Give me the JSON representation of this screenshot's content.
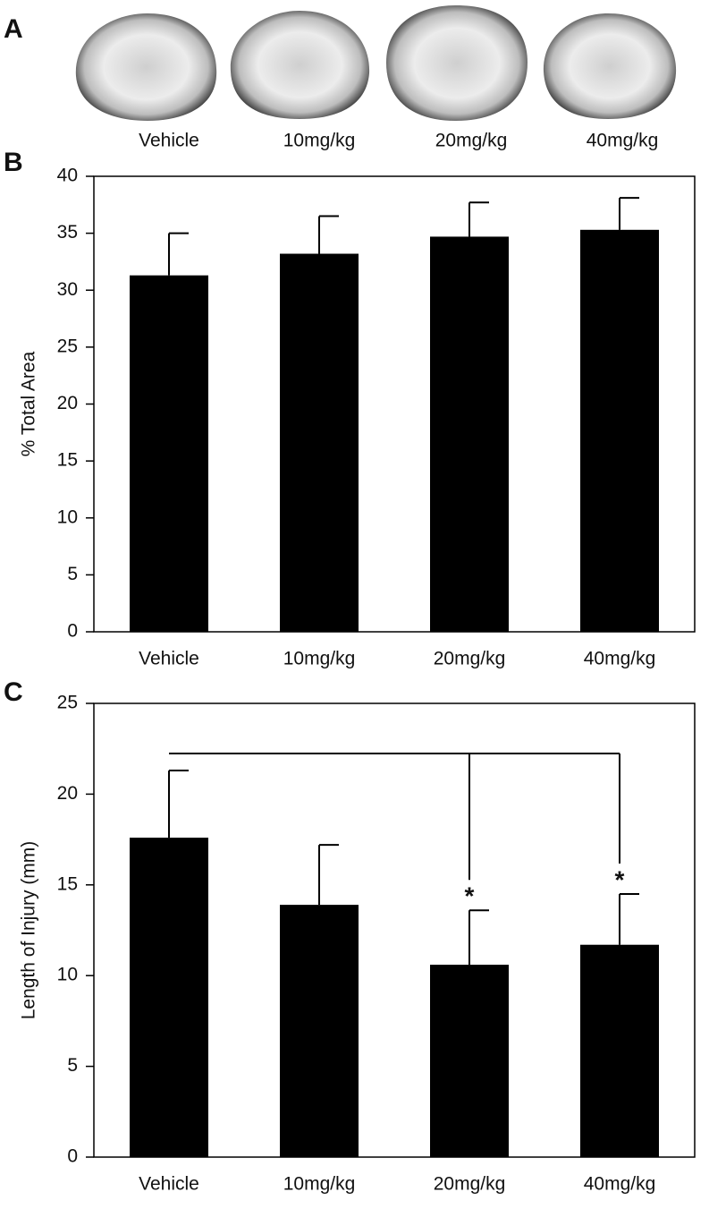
{
  "panel_a": {
    "panel_label": "A",
    "captions": [
      "Vehicle",
      "10mg/kg",
      "20mg/kg",
      "40mg/kg"
    ]
  },
  "chart_data": [
    {
      "type": "bar",
      "panel_label": "B",
      "y_axis_label": "% Total Area",
      "categories": [
        "Vehicle",
        "10mg/kg",
        "20mg/kg",
        "40mg/kg"
      ],
      "values": [
        31.3,
        33.2,
        34.7,
        35.3
      ],
      "errors": [
        3.7,
        3.3,
        3.0,
        2.8
      ],
      "color": "#000000",
      "ylim": [
        0,
        40
      ],
      "yticks": [
        0,
        5,
        10,
        15,
        20,
        25,
        30,
        35,
        40
      ]
    },
    {
      "type": "bar",
      "panel_label": "C",
      "y_axis_label": "Length of Injury (mm)",
      "categories": [
        "Vehicle",
        "10mg/kg",
        "20mg/kg",
        "40mg/kg"
      ],
      "values": [
        17.6,
        13.9,
        10.6,
        11.7
      ],
      "errors": [
        3.7,
        3.3,
        3.0,
        2.8
      ],
      "color": "#000000",
      "ylim": [
        0,
        25
      ],
      "yticks": [
        0,
        5,
        10,
        15,
        20,
        25
      ],
      "significant": [
        false,
        false,
        true,
        true
      ],
      "significance_marker": "*"
    }
  ]
}
